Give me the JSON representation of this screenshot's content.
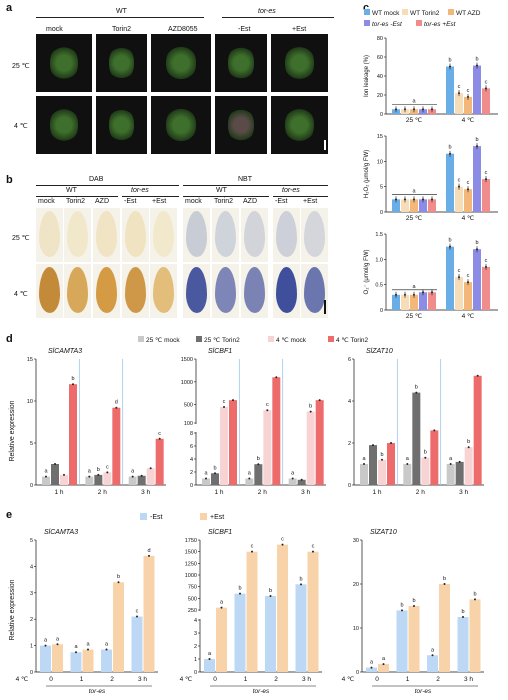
{
  "panels": {
    "a": "a",
    "b": "b",
    "c": "c",
    "d": "d",
    "e": "e"
  },
  "a": {
    "group_wt": "WT",
    "group_tor": "tor-es",
    "cols": [
      "mock",
      "Torin2",
      "AZD8055",
      "-Est",
      "+Est"
    ],
    "rows": [
      "25 ℃",
      "4 ℃"
    ]
  },
  "b": {
    "dab": "DAB",
    "nbt": "NBT",
    "group_wt": "WT",
    "group_tor": "tor-es",
    "cols": [
      "mock",
      "Torin2",
      "AZD",
      "-Est",
      "+Est"
    ],
    "rows": [
      "25 ℃",
      "4 ℃"
    ]
  },
  "c": {
    "legend": [
      "WT mock",
      "WT Torin2",
      "WT AZD",
      "tor-es -Est",
      "tor-es +Est"
    ],
    "colors": [
      "#6aaee8",
      "#f6ddb8",
      "#f3b77a",
      "#8c8ce6",
      "#f08c8c"
    ],
    "x": [
      "25 ℃",
      "4 ℃"
    ],
    "charts": [
      {
        "ylabel": "Ion leakage (%)",
        "ylim": [
          0,
          80
        ],
        "yticks": [
          "0",
          "20",
          "40",
          "60",
          "80"
        ],
        "vals25": [
          5,
          5,
          5,
          5,
          5
        ],
        "vals4": [
          50,
          22,
          18,
          51,
          27
        ],
        "let25": "a",
        "let4": [
          "b",
          "c",
          "c",
          "b",
          "c"
        ]
      },
      {
        "ylabel": "H₂O₂ (μmol/g FW)",
        "ylim": [
          0,
          15
        ],
        "yticks": [
          "0",
          "5",
          "10",
          "15"
        ],
        "vals25": [
          2.5,
          2.5,
          2.5,
          2.5,
          2.5
        ],
        "vals4": [
          11.5,
          5,
          4.5,
          13,
          6.5
        ],
        "let25": "a",
        "let4": [
          "b",
          "c",
          "c",
          "b",
          "c"
        ]
      },
      {
        "ylabel": "O₂⁻ (μmol/g FW)",
        "ylim": [
          0,
          1.5
        ],
        "yticks": [
          "0",
          "0.5",
          "1.0",
          "1.5"
        ],
        "vals25": [
          0.3,
          0.3,
          0.3,
          0.35,
          0.35
        ],
        "vals4": [
          1.25,
          0.65,
          0.55,
          1.2,
          0.85
        ],
        "let25": "a",
        "let4": [
          "b",
          "c",
          "c",
          "b",
          "c"
        ]
      }
    ]
  },
  "d": {
    "legend": [
      "25 ℃ mock",
      "25 ℃ Torin2",
      "4 ℃ mock",
      "4 ℃ Torin2"
    ],
    "colors": [
      "#c9c9c9",
      "#6f6f6f",
      "#f7d3d3",
      "#ee6b6b"
    ],
    "ylabel": "Relative expression",
    "x": [
      "1 h",
      "2 h",
      "3 h"
    ],
    "charts": [
      {
        "title": "SlCAMTA3",
        "ylim": [
          0,
          15
        ],
        "yticks": [
          "0",
          "5",
          "10",
          "15"
        ],
        "series": [
          [
            1,
            1,
            1
          ],
          [
            2.5,
            1.2,
            1.1
          ],
          [
            1.2,
            1.5,
            2
          ],
          [
            12,
            9.2,
            5.5
          ]
        ],
        "letters": [
          [
            "a",
            "",
            "",
            "b"
          ],
          [
            "a",
            "b",
            "c",
            "d"
          ],
          [
            "a",
            "",
            "",
            "c"
          ]
        ]
      },
      {
        "title": "SlCBF1",
        "break": true,
        "ylim_low": [
          0,
          8
        ],
        "ylim_high": [
          100,
          1500
        ],
        "yticks_low": [
          "0",
          "2",
          "4",
          "6",
          "8"
        ],
        "yticks_high": [
          "1500",
          "1000",
          "500",
          "100"
        ],
        "series": [
          [
            1,
            1,
            1
          ],
          [
            1.8,
            3.2,
            0.8
          ],
          [
            450,
            380,
            350
          ],
          [
            600,
            1100,
            600
          ]
        ],
        "letters": [
          [
            "a",
            "b",
            "c"
          ],
          [
            "a",
            "b",
            "c"
          ],
          [
            "a",
            "",
            "b"
          ]
        ]
      },
      {
        "title": "SlZAT10",
        "ylim": [
          0,
          6
        ],
        "yticks": [
          "0",
          "2",
          "4",
          "6"
        ],
        "series": [
          [
            1,
            1,
            1
          ],
          [
            1.9,
            4.4,
            1.1
          ],
          [
            1.2,
            1.3,
            1.8
          ],
          [
            2,
            2.6,
            5.2
          ]
        ],
        "letters": [
          [
            "a",
            "",
            "b"
          ],
          [
            "a",
            "b",
            "b"
          ],
          [
            "a",
            "",
            "b"
          ]
        ]
      }
    ]
  },
  "e": {
    "legend": [
      "-Est",
      "+Est"
    ],
    "colors": [
      "#bcd8f4",
      "#f8d3a9"
    ],
    "ylabel": "Relative expression",
    "xaxis_title": "4 ℃",
    "x": [
      "0",
      "1",
      "2",
      "3 h"
    ],
    "xsub": "tor-es",
    "charts": [
      {
        "title": "SlCAMTA3",
        "ylim": [
          0,
          5
        ],
        "yticks": [
          "0",
          "1",
          "2",
          "3",
          "4",
          "5"
        ],
        "minus": [
          1,
          0.75,
          0.85,
          2.1
        ],
        "plus": [
          1.05,
          0.85,
          3.4,
          4.4
        ],
        "letters": [
          [
            "a",
            "a"
          ],
          [
            "a",
            "a"
          ],
          [
            "a",
            "b"
          ],
          [
            "c",
            "d"
          ]
        ]
      },
      {
        "title": "SlCBF1",
        "break": true,
        "ylim_low": [
          0,
          4
        ],
        "ylim_high": [
          250,
          1750
        ],
        "yticks_low": [
          "0",
          "1",
          "2",
          "3",
          "4"
        ],
        "yticks_high": [
          "1750",
          "1500",
          "1250",
          "1000",
          "750",
          "500",
          "250"
        ],
        "minus": [
          1,
          600,
          550,
          800
        ],
        "plus": [
          300,
          1500,
          1650,
          1500
        ],
        "letters": [
          [
            "a",
            "a"
          ],
          [
            "b",
            "c"
          ],
          [
            "b",
            "c"
          ],
          [
            "b",
            "c"
          ]
        ]
      },
      {
        "title": "SlZAT10",
        "ylim": [
          0,
          30
        ],
        "yticks": [
          "0",
          "10",
          "20",
          "30"
        ],
        "minus": [
          1,
          14,
          3.8,
          12.5
        ],
        "plus": [
          1.8,
          15,
          20,
          16.5
        ],
        "letters": [
          [
            "a",
            "a"
          ],
          [
            "b",
            "b"
          ],
          [
            "a",
            "b"
          ],
          [
            "b",
            "b"
          ]
        ]
      }
    ]
  }
}
